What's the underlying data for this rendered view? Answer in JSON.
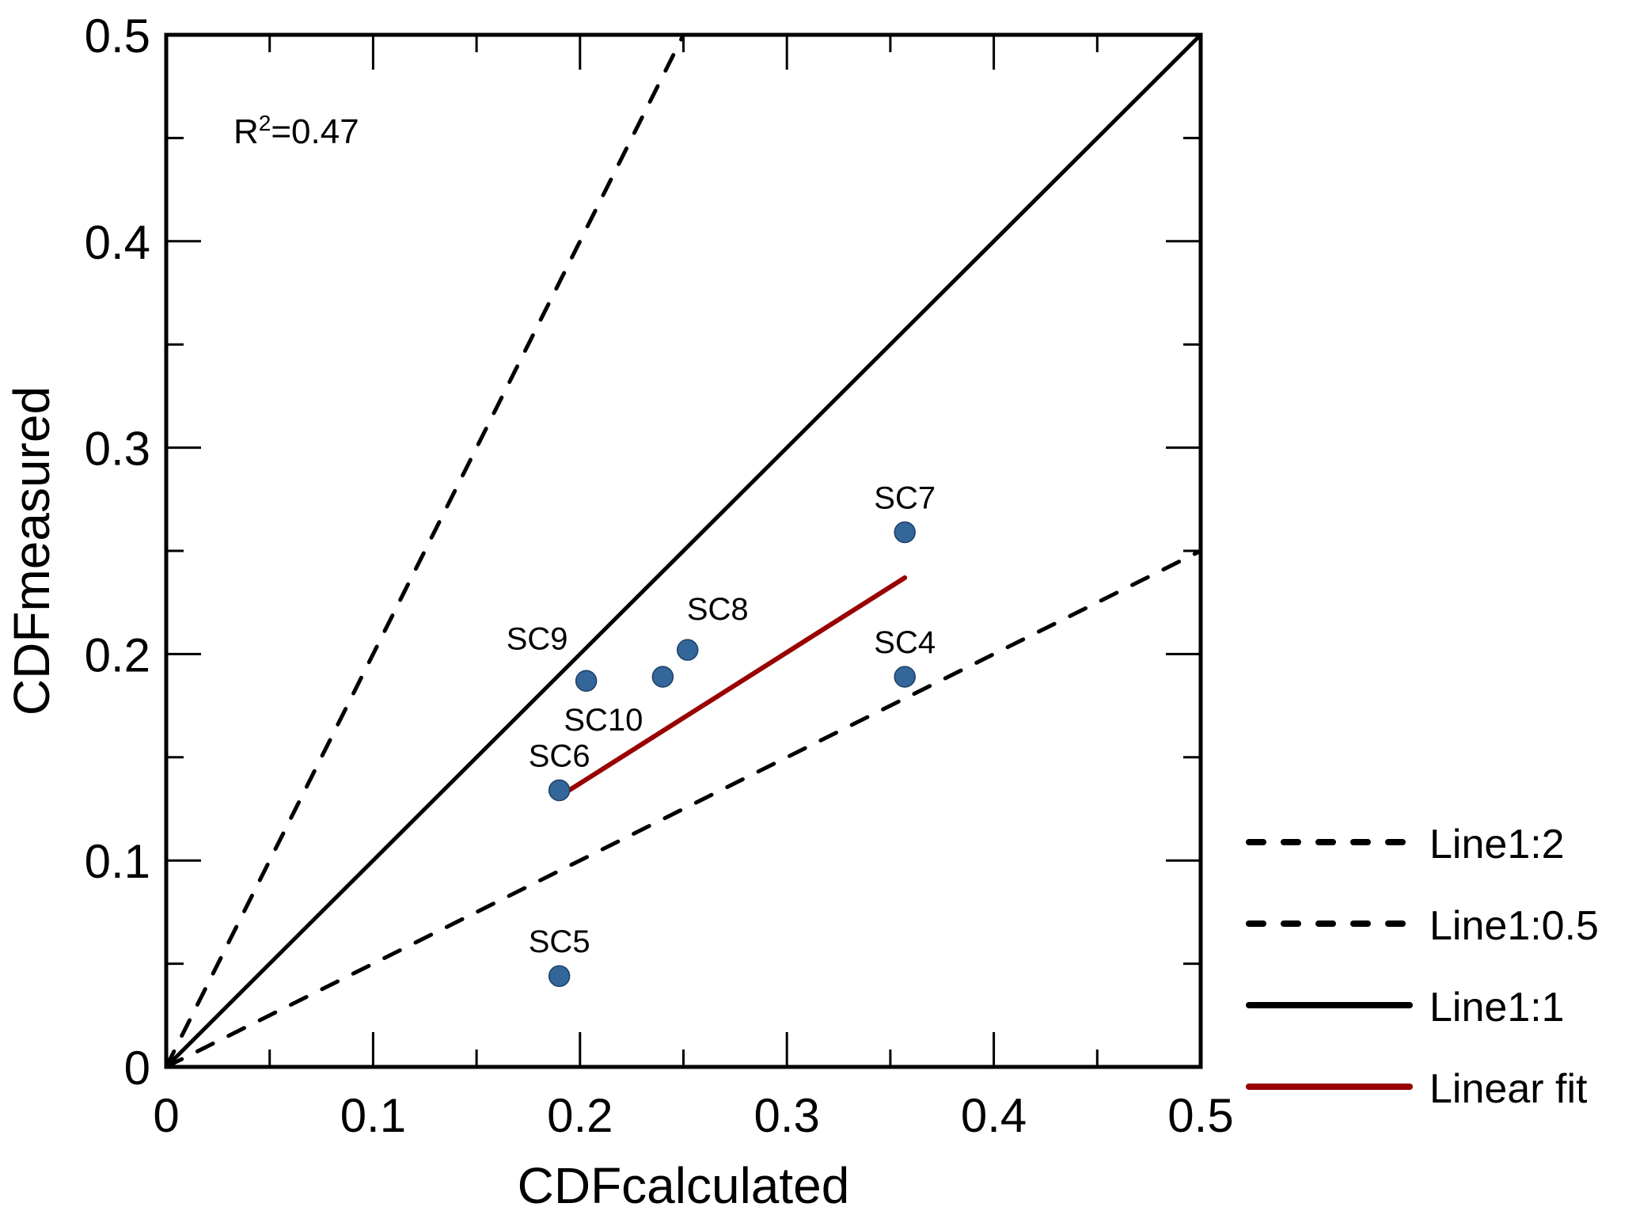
{
  "chart_data": {
    "type": "scatter",
    "title": "",
    "xlabel": "CDFcalculated",
    "ylabel": "CDFmeasured",
    "xlim": [
      0,
      0.5
    ],
    "ylim": [
      0,
      0.5
    ],
    "x_ticks": [
      0,
      0.1,
      0.2,
      0.3,
      0.4,
      0.5
    ],
    "x_tick_labels": [
      "0",
      "0.1",
      "0.2",
      "0.3",
      "0.4",
      "0.5"
    ],
    "y_ticks": [
      0,
      0.1,
      0.2,
      0.3,
      0.4,
      0.5
    ],
    "y_tick_labels": [
      "0",
      "0.1",
      "0.2",
      "0.3",
      "0.4",
      "0.5"
    ],
    "minor_step": 0.05,
    "grid": false,
    "annotation": "R²=0.47",
    "point_color": "#336699",
    "points": [
      {
        "label": "SC7",
        "x": 0.357,
        "y": 0.259,
        "label_pos": "above"
      },
      {
        "label": "SC4",
        "x": 0.357,
        "y": 0.189,
        "label_pos": "above"
      },
      {
        "label": "SC8",
        "x": 0.252,
        "y": 0.202,
        "label_pos": "above-right"
      },
      {
        "label": "SC10",
        "x": 0.24,
        "y": 0.189,
        "label_pos": "below-left"
      },
      {
        "label": "SC9",
        "x": 0.203,
        "y": 0.187,
        "label_pos": "above-left"
      },
      {
        "label": "SC6",
        "x": 0.19,
        "y": 0.134,
        "label_pos": "above"
      },
      {
        "label": "SC5",
        "x": 0.19,
        "y": 0.044,
        "label_pos": "above"
      }
    ],
    "lines": [
      {
        "name": "Line1:2",
        "style": "dashed",
        "color": "#000000",
        "x": [
          0,
          0.25
        ],
        "y": [
          0,
          0.5
        ]
      },
      {
        "name": "Line1:0.5",
        "style": "dashed",
        "color": "#000000",
        "x": [
          0,
          0.5
        ],
        "y": [
          0,
          0.25
        ]
      },
      {
        "name": "Line1:1",
        "style": "solid",
        "color": "#000000",
        "x": [
          0,
          0.5
        ],
        "y": [
          0,
          0.5
        ]
      },
      {
        "name": "Linear fit",
        "style": "solid",
        "color": "#990000",
        "x": [
          0.19,
          0.357
        ],
        "y": [
          0.131,
          0.237
        ]
      }
    ],
    "legend": {
      "placement": "right",
      "entries": [
        "Line1:2",
        "Line1:0.5",
        "Line1:1",
        "Linear fit"
      ]
    }
  }
}
